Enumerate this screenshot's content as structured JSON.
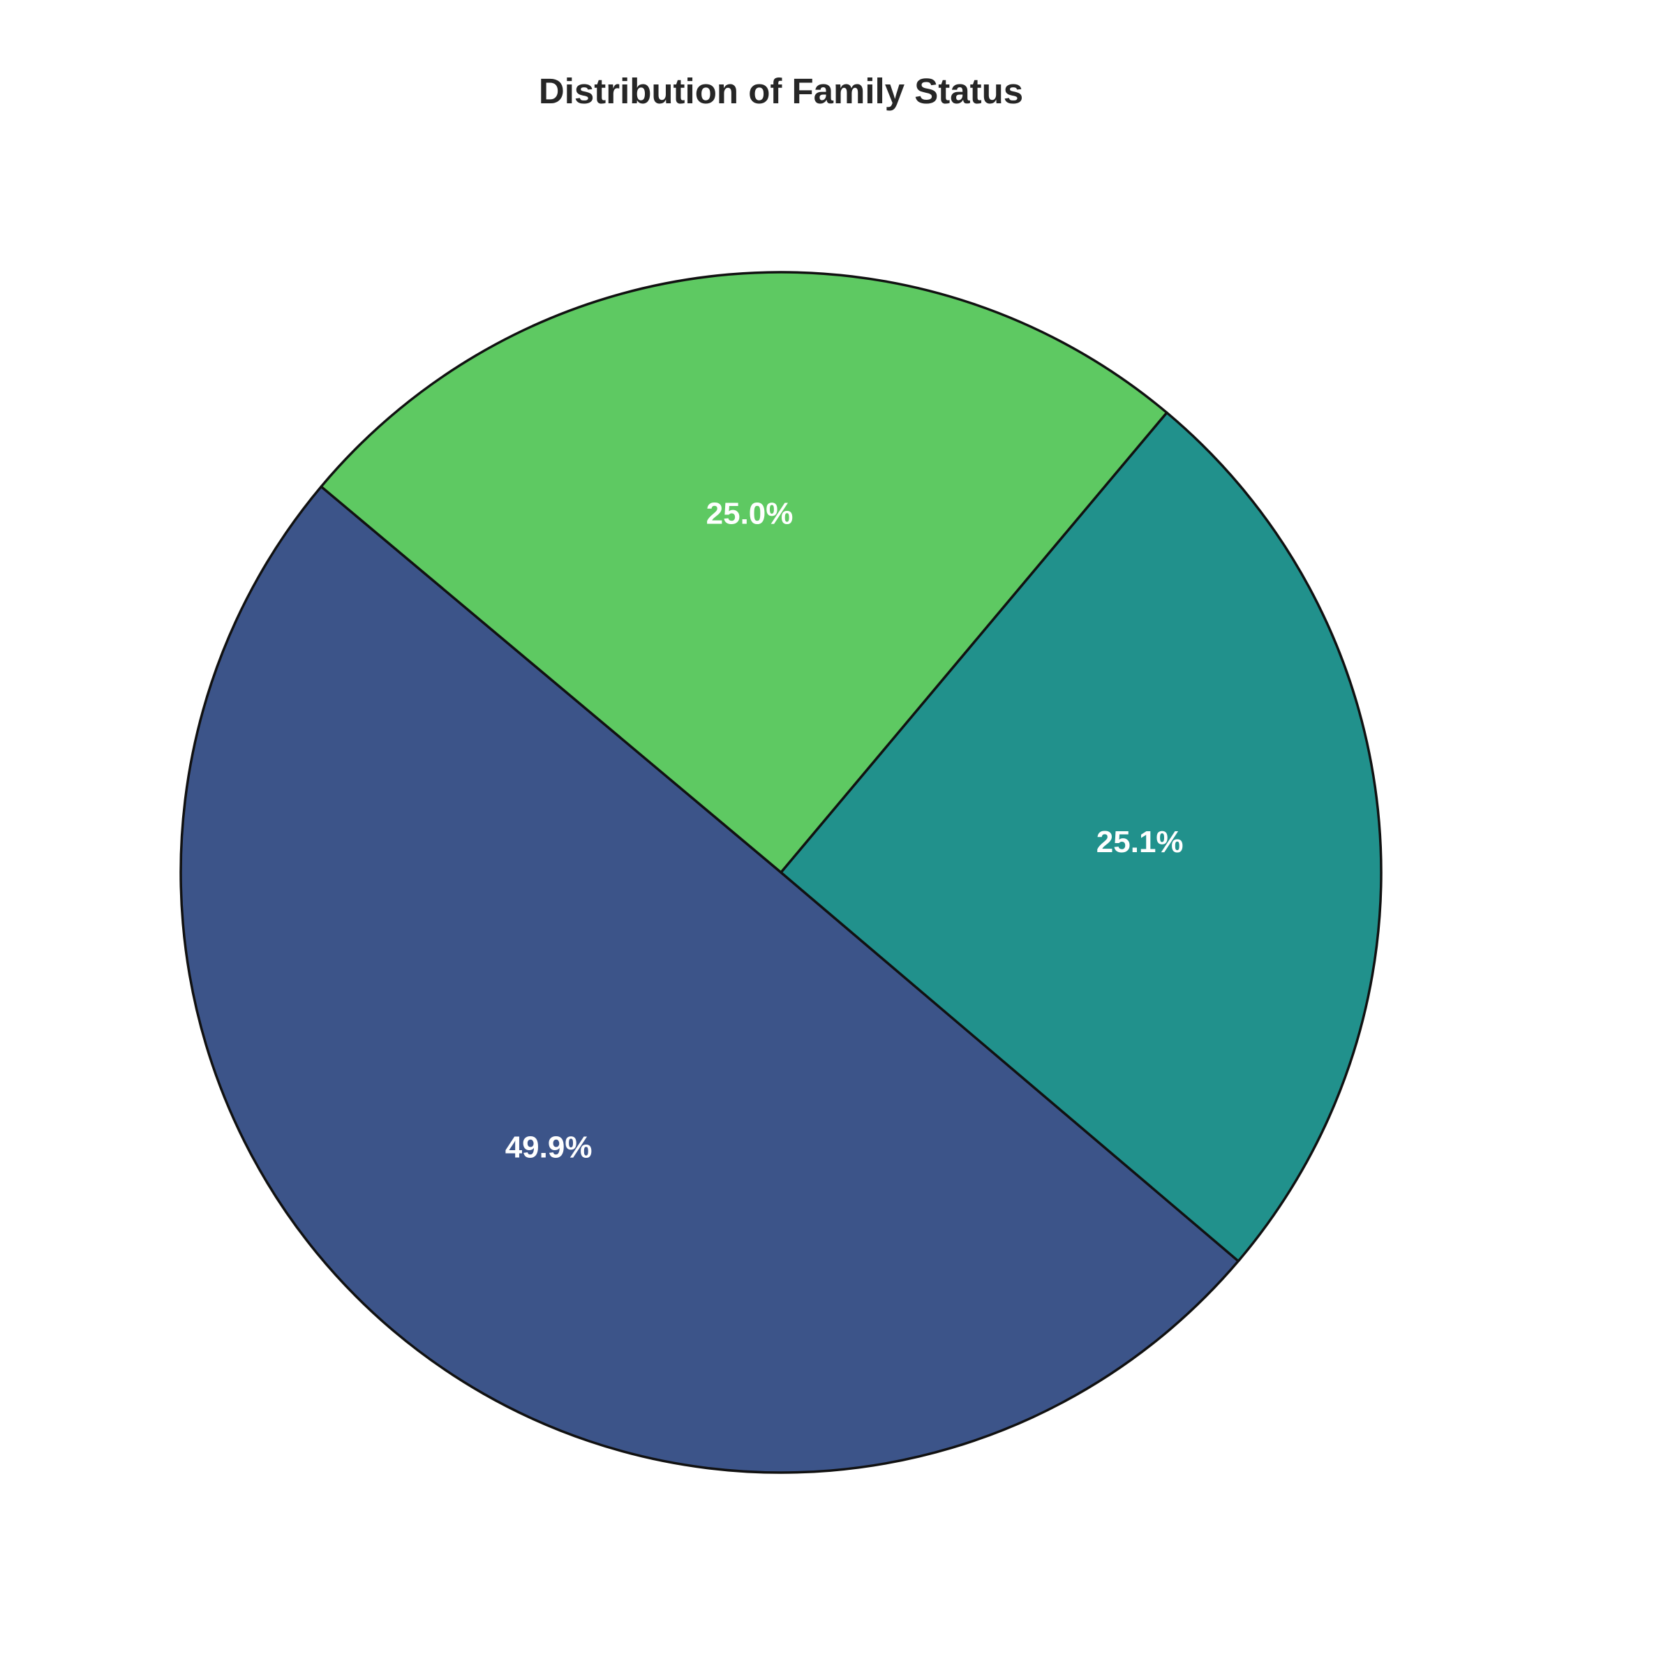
{
  "chart_data": {
    "type": "pie",
    "title": "Distribution of Family Status",
    "slices": [
      {
        "value": 49.9,
        "label": "49.9%",
        "color": "#3c5489"
      },
      {
        "value": 25.1,
        "label": "25.1%",
        "color": "#21918c"
      },
      {
        "value": 25.0,
        "label": "25.0%",
        "color": "#5ec962"
      }
    ],
    "start_angle_deg": 140,
    "direction": "counterclockwise",
    "legend": false
  }
}
